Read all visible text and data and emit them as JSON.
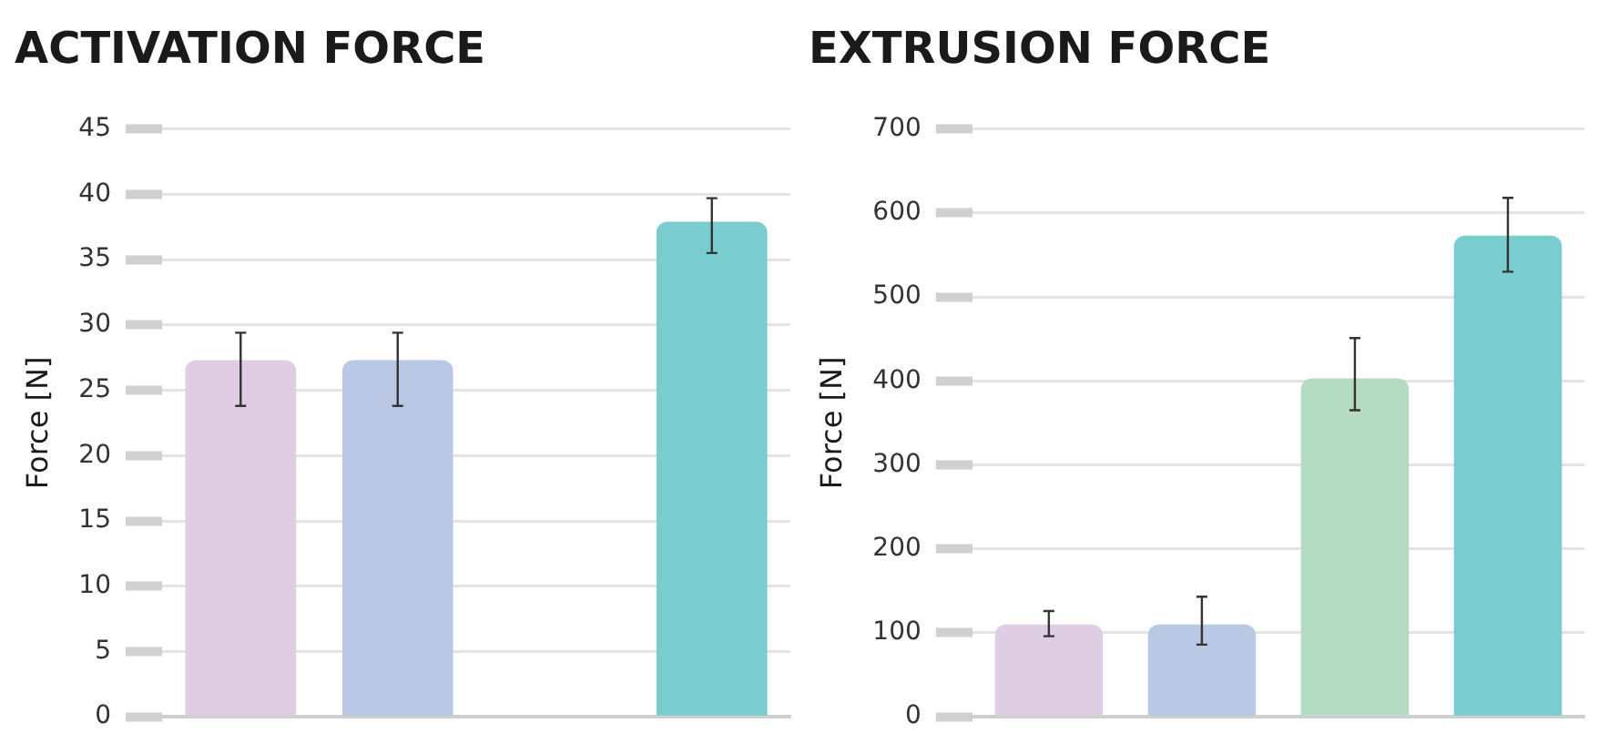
{
  "chart_data": [
    {
      "type": "bar",
      "title": "ACTIVATION FORCE",
      "ylabel": "Force [N]",
      "categories": [
        null,
        null,
        null,
        null
      ],
      "values": [
        27.3,
        27.3,
        null,
        37.9
      ],
      "colors": [
        "#dfcde3",
        "#bac8e5",
        "#b3dcc3",
        "#79cdcf"
      ],
      "errors": [
        [
          23.8,
          29.4
        ],
        [
          23.8,
          29.4
        ],
        null,
        [
          35.5,
          39.7
        ]
      ],
      "ylim": [
        0,
        45
      ],
      "yticks": [
        0,
        5,
        10,
        15,
        20,
        25,
        30,
        35,
        40,
        45
      ],
      "grid": "y",
      "legend": false
    },
    {
      "type": "bar",
      "title": "EXTRUSION FORCE",
      "ylabel": "Force [N]",
      "categories": [
        null,
        null,
        null,
        null
      ],
      "values": [
        110,
        110,
        403,
        573
      ],
      "colors": [
        "#dfcde3",
        "#bac8e5",
        "#b3dcc3",
        "#79cdcf"
      ],
      "errors": [
        [
          96,
          126
        ],
        [
          86,
          143
        ],
        [
          365,
          451
        ],
        [
          530,
          618
        ]
      ],
      "ylim": [
        0,
        700
      ],
      "yticks": [
        0,
        100,
        200,
        300,
        400,
        500,
        600,
        700
      ],
      "grid": "y",
      "legend": false
    }
  ]
}
